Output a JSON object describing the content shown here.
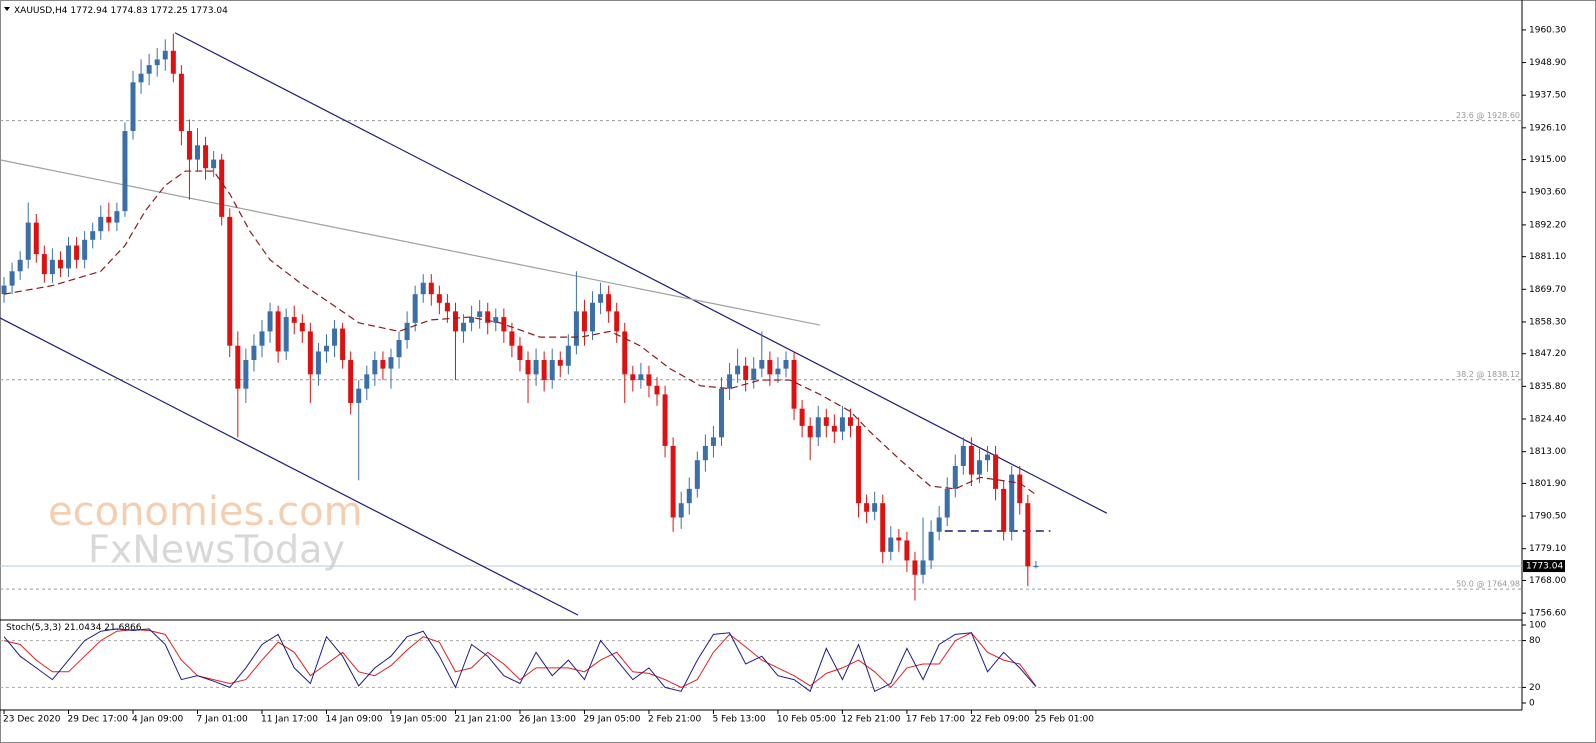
{
  "chart_data": {
    "type": "candlestick",
    "symbol": "XAUUSD,H4",
    "up_color": "#3a6fa8",
    "down_color": "#e01010",
    "xlim": [
      -0.5,
      188.3
    ],
    "ylim": [
      1754.2,
      1969.0
    ],
    "yticks": [
      {
        "value": 1960.3,
        "label": "1960.30"
      },
      {
        "value": 1948.9,
        "label": "1948.90"
      },
      {
        "value": 1937.5,
        "label": "1937.50"
      },
      {
        "value": 1926.1,
        "label": "1926.10"
      },
      {
        "value": 1915,
        "label": "1915.00"
      },
      {
        "value": 1903.6,
        "label": "1903.60"
      },
      {
        "value": 1892.2,
        "label": "1892.20"
      },
      {
        "value": 1881.1,
        "label": "1881.10"
      },
      {
        "value": 1869.7,
        "label": "1869.70"
      },
      {
        "value": 1858.3,
        "label": "1858.30"
      },
      {
        "value": 1847.2,
        "label": "1847.20"
      },
      {
        "value": 1835.8,
        "label": "1835.80"
      },
      {
        "value": 1824.4,
        "label": "1824.40"
      },
      {
        "value": 1813,
        "label": "1813.00"
      },
      {
        "value": 1801.9,
        "label": "1801.90"
      },
      {
        "value": 1790.5,
        "label": "1790.50"
      },
      {
        "value": 1779.1,
        "label": "1779.10"
      },
      {
        "value": 1768,
        "label": "1768.00"
      },
      {
        "value": 1756.6,
        "label": "1756.60"
      }
    ],
    "xticks": [
      {
        "value": 0,
        "label": "23 Dec 2020"
      },
      {
        "value": 8,
        "label": "29 Dec 17:00"
      },
      {
        "value": 16,
        "label": "4 Jan 09:00"
      },
      {
        "value": 24,
        "label": "7 Jan 01:00"
      },
      {
        "value": 32,
        "label": "11 Jan 17:00"
      },
      {
        "value": 40,
        "label": "14 Jan 09:00"
      },
      {
        "value": 48,
        "label": "19 Jan 05:00"
      },
      {
        "value": 56,
        "label": "21 Jan 21:00"
      },
      {
        "value": 64,
        "label": "26 Jan 13:00"
      },
      {
        "value": 72,
        "label": "29 Jan 05:00"
      },
      {
        "value": 80,
        "label": "2 Feb 21:00"
      },
      {
        "value": 88,
        "label": "5 Feb 13:00"
      },
      {
        "value": 96,
        "label": "10 Feb 05:00"
      },
      {
        "value": 104,
        "label": "12 Feb 21:00"
      },
      {
        "value": 112,
        "label": "17 Feb 17:00"
      },
      {
        "value": 120,
        "label": "22 Feb 09:00"
      },
      {
        "value": 128,
        "label": "25 Feb 01:00"
      }
    ],
    "ohlc": [
      [
        1868,
        1874,
        1865,
        1871
      ],
      [
        1871,
        1879,
        1868,
        1876
      ],
      [
        1876,
        1883,
        1873,
        1880
      ],
      [
        1880,
        1900,
        1877,
        1893
      ],
      [
        1893,
        1896,
        1879,
        1882
      ],
      [
        1882,
        1885,
        1872,
        1875
      ],
      [
        1875,
        1884,
        1872,
        1880
      ],
      [
        1880,
        1883,
        1874,
        1877
      ],
      [
        1877,
        1888,
        1874,
        1885
      ],
      [
        1885,
        1888,
        1877,
        1880
      ],
      [
        1880,
        1890,
        1877,
        1887
      ],
      [
        1887,
        1893,
        1884,
        1890
      ],
      [
        1890,
        1899,
        1887,
        1895
      ],
      [
        1895,
        1900,
        1890,
        1893
      ],
      [
        1893,
        1900,
        1890,
        1897
      ],
      [
        1897,
        1928,
        1895,
        1925
      ],
      [
        1925,
        1946,
        1922,
        1942
      ],
      [
        1942,
        1950,
        1938,
        1945
      ],
      [
        1945,
        1952,
        1941,
        1948
      ],
      [
        1948,
        1954,
        1944,
        1950
      ],
      [
        1950,
        1957,
        1946,
        1953
      ],
      [
        1953,
        1959,
        1942,
        1945
      ],
      [
        1945,
        1948,
        1920,
        1925
      ],
      [
        1925,
        1929,
        1901,
        1915
      ],
      [
        1915,
        1926,
        1911,
        1920
      ],
      [
        1920,
        1923,
        1908,
        1912
      ],
      [
        1912,
        1918,
        1909,
        1915
      ],
      [
        1915,
        1917,
        1892,
        1895
      ],
      [
        1895,
        1898,
        1846,
        1850
      ],
      [
        1850,
        1855,
        1818,
        1835
      ],
      [
        1835,
        1849,
        1830,
        1845
      ],
      [
        1845,
        1854,
        1841,
        1850
      ],
      [
        1850,
        1859,
        1846,
        1855
      ],
      [
        1855,
        1865,
        1851,
        1862
      ],
      [
        1862,
        1864,
        1844,
        1848
      ],
      [
        1848,
        1863,
        1845,
        1860
      ],
      [
        1860,
        1864,
        1854,
        1858
      ],
      [
        1858,
        1861,
        1851,
        1855
      ],
      [
        1855,
        1858,
        1830,
        1840
      ],
      [
        1840,
        1851,
        1836,
        1848
      ],
      [
        1848,
        1854,
        1844,
        1850
      ],
      [
        1850,
        1859,
        1846,
        1856
      ],
      [
        1856,
        1858,
        1842,
        1845
      ],
      [
        1845,
        1848,
        1826,
        1830
      ],
      [
        1830,
        1838,
        1803,
        1835
      ],
      [
        1835,
        1843,
        1831,
        1840
      ],
      [
        1840,
        1848,
        1836,
        1845
      ],
      [
        1845,
        1848,
        1838,
        1842
      ],
      [
        1842,
        1849,
        1835,
        1846
      ],
      [
        1846,
        1855,
        1842,
        1852
      ],
      [
        1852,
        1862,
        1849,
        1858
      ],
      [
        1858,
        1871,
        1855,
        1868
      ],
      [
        1868,
        1875,
        1865,
        1872
      ],
      [
        1872,
        1875,
        1864,
        1868
      ],
      [
        1868,
        1871,
        1861,
        1865
      ],
      [
        1865,
        1868,
        1858,
        1862
      ],
      [
        1862,
        1865,
        1838,
        1855
      ],
      [
        1855,
        1861,
        1851,
        1858
      ],
      [
        1858,
        1864,
        1855,
        1860
      ],
      [
        1860,
        1866,
        1856,
        1862
      ],
      [
        1862,
        1865,
        1854,
        1858
      ],
      [
        1858,
        1863,
        1855,
        1860
      ],
      [
        1860,
        1863,
        1851,
        1855
      ],
      [
        1855,
        1858,
        1846,
        1850
      ],
      [
        1850,
        1853,
        1841,
        1845
      ],
      [
        1845,
        1848,
        1830,
        1840
      ],
      [
        1840,
        1849,
        1836,
        1845
      ],
      [
        1845,
        1848,
        1834,
        1838
      ],
      [
        1838,
        1849,
        1835,
        1845
      ],
      [
        1845,
        1848,
        1839,
        1843
      ],
      [
        1843,
        1854,
        1840,
        1850
      ],
      [
        1850,
        1876,
        1847,
        1862
      ],
      [
        1862,
        1866,
        1850,
        1855
      ],
      [
        1855,
        1869,
        1852,
        1865
      ],
      [
        1865,
        1872,
        1861,
        1868
      ],
      [
        1868,
        1871,
        1858,
        1862
      ],
      [
        1862,
        1865,
        1851,
        1855
      ],
      [
        1855,
        1858,
        1830,
        1840
      ],
      [
        1840,
        1843,
        1834,
        1838
      ],
      [
        1838,
        1844,
        1835,
        1840
      ],
      [
        1840,
        1843,
        1832,
        1836
      ],
      [
        1836,
        1839,
        1829,
        1833
      ],
      [
        1833,
        1836,
        1811,
        1815
      ],
      [
        1815,
        1818,
        1785,
        1790
      ],
      [
        1790,
        1799,
        1786,
        1795
      ],
      [
        1795,
        1804,
        1791,
        1800
      ],
      [
        1800,
        1813,
        1797,
        1810
      ],
      [
        1810,
        1819,
        1806,
        1815
      ],
      [
        1815,
        1822,
        1811,
        1818
      ],
      [
        1818,
        1839,
        1815,
        1835
      ],
      [
        1835,
        1844,
        1831,
        1840
      ],
      [
        1840,
        1849,
        1837,
        1843
      ],
      [
        1843,
        1846,
        1834,
        1838
      ],
      [
        1838,
        1846,
        1835,
        1842
      ],
      [
        1842,
        1855,
        1839,
        1845
      ],
      [
        1845,
        1848,
        1836,
        1840
      ],
      [
        1840,
        1846,
        1837,
        1842
      ],
      [
        1842,
        1848,
        1839,
        1845
      ],
      [
        1845,
        1848,
        1824,
        1828
      ],
      [
        1828,
        1831,
        1818,
        1822
      ],
      [
        1822,
        1825,
        1810,
        1818
      ],
      [
        1818,
        1829,
        1815,
        1825
      ],
      [
        1825,
        1828,
        1818,
        1822
      ],
      [
        1822,
        1826,
        1816,
        1820
      ],
      [
        1820,
        1829,
        1817,
        1825
      ],
      [
        1825,
        1828,
        1818,
        1822
      ],
      [
        1822,
        1825,
        1790,
        1795
      ],
      [
        1795,
        1798,
        1788,
        1792
      ],
      [
        1792,
        1799,
        1789,
        1795
      ],
      [
        1795,
        1798,
        1774,
        1778
      ],
      [
        1778,
        1787,
        1775,
        1783
      ],
      [
        1783,
        1786,
        1778,
        1782
      ],
      [
        1782,
        1785,
        1771,
        1775
      ],
      [
        1775,
        1778,
        1761,
        1770
      ],
      [
        1770,
        1790,
        1767,
        1775
      ],
      [
        1775,
        1789,
        1772,
        1785
      ],
      [
        1785,
        1794,
        1782,
        1790
      ],
      [
        1790,
        1804,
        1787,
        1800
      ],
      [
        1800,
        1812,
        1797,
        1808
      ],
      [
        1808,
        1818,
        1805,
        1815
      ],
      [
        1815,
        1818,
        1801,
        1805
      ],
      [
        1805,
        1814,
        1802,
        1810
      ],
      [
        1810,
        1815,
        1806,
        1812
      ],
      [
        1812,
        1815,
        1796,
        1800
      ],
      [
        1800,
        1803,
        1782,
        1785
      ],
      [
        1785,
        1808,
        1782,
        1805
      ],
      [
        1805,
        1808,
        1791,
        1795
      ],
      [
        1795,
        1798,
        1766,
        1772.94
      ],
      [
        1772.94,
        1774.83,
        1772.25,
        1773.04
      ]
    ],
    "ma": {
      "color": "#8b1a1a",
      "x": [
        0,
        6,
        12,
        15,
        17.5,
        20,
        22.5,
        26,
        28,
        30.5,
        33,
        36.7,
        40.4,
        44,
        49,
        52.9,
        57.8,
        61.5,
        66.5,
        71.5,
        75.2,
        78.9,
        82.6,
        86.4,
        90,
        93.8,
        97.5,
        101.2,
        105,
        107.4,
        111.2,
        114.9,
        118,
        121.1,
        123.6,
        126,
        128
      ],
      "values": [
        1868,
        1871,
        1876,
        1885,
        1897,
        1906,
        1911,
        1911,
        1903,
        1890,
        1880,
        1872,
        1865,
        1858,
        1855,
        1859,
        1860,
        1858,
        1853,
        1853,
        1855,
        1850,
        1842,
        1836,
        1835,
        1838,
        1838,
        1833,
        1827,
        1820,
        1810,
        1801,
        1800,
        1804,
        1803,
        1802,
        1798
      ]
    },
    "levels": [
      {
        "label": "23.6 @ 1928.60",
        "value": 1928.6
      },
      {
        "label": "38.2 @ 1838.12",
        "value": 1838.12
      },
      {
        "label": "50.0 @ 1764.98",
        "value": 1764.98
      }
    ],
    "trendlines": [
      {
        "color": "#1c1c7a",
        "x": [
          21.2,
          136.8
        ],
        "y": [
          1959.3,
          1791.5
        ]
      },
      {
        "color": "#1c1c7a",
        "x": [
          -0.5,
          71.2
        ],
        "y": [
          1859.7,
          1755.9
        ]
      },
      {
        "color": "#a0a0a0",
        "x": [
          -0.5,
          101.2
        ],
        "y": [
          1914.9,
          1857.2
        ]
      },
      {
        "color": "#1c1c7a",
        "dashed": true,
        "x": [
          116.7,
          129.8
        ],
        "y": [
          1785.3,
          1785.3
        ]
      }
    ],
    "watermark": [
      "economies.com",
      "FxNewsToday"
    ],
    "indicator": {
      "name": "Stoch(5,3,3)",
      "ylim": [
        0,
        100
      ],
      "yticks": [
        0,
        20,
        80,
        100
      ],
      "levels": [
        20,
        80
      ],
      "x": [
        0,
        2,
        4,
        6,
        8,
        10,
        12,
        14,
        16,
        18,
        20,
        22,
        24,
        26,
        28,
        30,
        32,
        34,
        36,
        38,
        40,
        42,
        44,
        46,
        48,
        50,
        52,
        54,
        56,
        58,
        60,
        62,
        64,
        66,
        68,
        70,
        72,
        74,
        76,
        78,
        80,
        82,
        84,
        86,
        88,
        90,
        92,
        94,
        96,
        98,
        100,
        102,
        104,
        106,
        108,
        110,
        112,
        114,
        116,
        118,
        120,
        122,
        124,
        126,
        128
      ],
      "series": [
        {
          "color": "#1c1c8a",
          "values": [
            85,
            60,
            45,
            30,
            55,
            80,
            92,
            95,
            93,
            95,
            75,
            30,
            35,
            28,
            20,
            45,
            75,
            88,
            45,
            25,
            85,
            60,
            22,
            45,
            60,
            85,
            92,
            60,
            20,
            75,
            60,
            35,
            25,
            65,
            35,
            55,
            30,
            80,
            55,
            30,
            45,
            20,
            15,
            55,
            88,
            90,
            50,
            60,
            35,
            30,
            15,
            70,
            30,
            75,
            15,
            25,
            70,
            30,
            75,
            88,
            90,
            40,
            65,
            45,
            21.0434
          ]
        },
        {
          "color": "#e02020",
          "values": [
            80,
            75,
            55,
            40,
            40,
            60,
            80,
            92,
            94,
            93,
            88,
            55,
            35,
            30,
            25,
            30,
            55,
            78,
            65,
            35,
            50,
            65,
            40,
            35,
            48,
            68,
            85,
            78,
            40,
            45,
            65,
            50,
            30,
            45,
            45,
            45,
            40,
            55,
            65,
            40,
            38,
            30,
            20,
            30,
            65,
            88,
            72,
            55,
            45,
            35,
            22,
            38,
            45,
            55,
            40,
            20,
            45,
            50,
            50,
            80,
            90,
            65,
            55,
            50,
            21.6866
          ]
        }
      ]
    }
  }
}
